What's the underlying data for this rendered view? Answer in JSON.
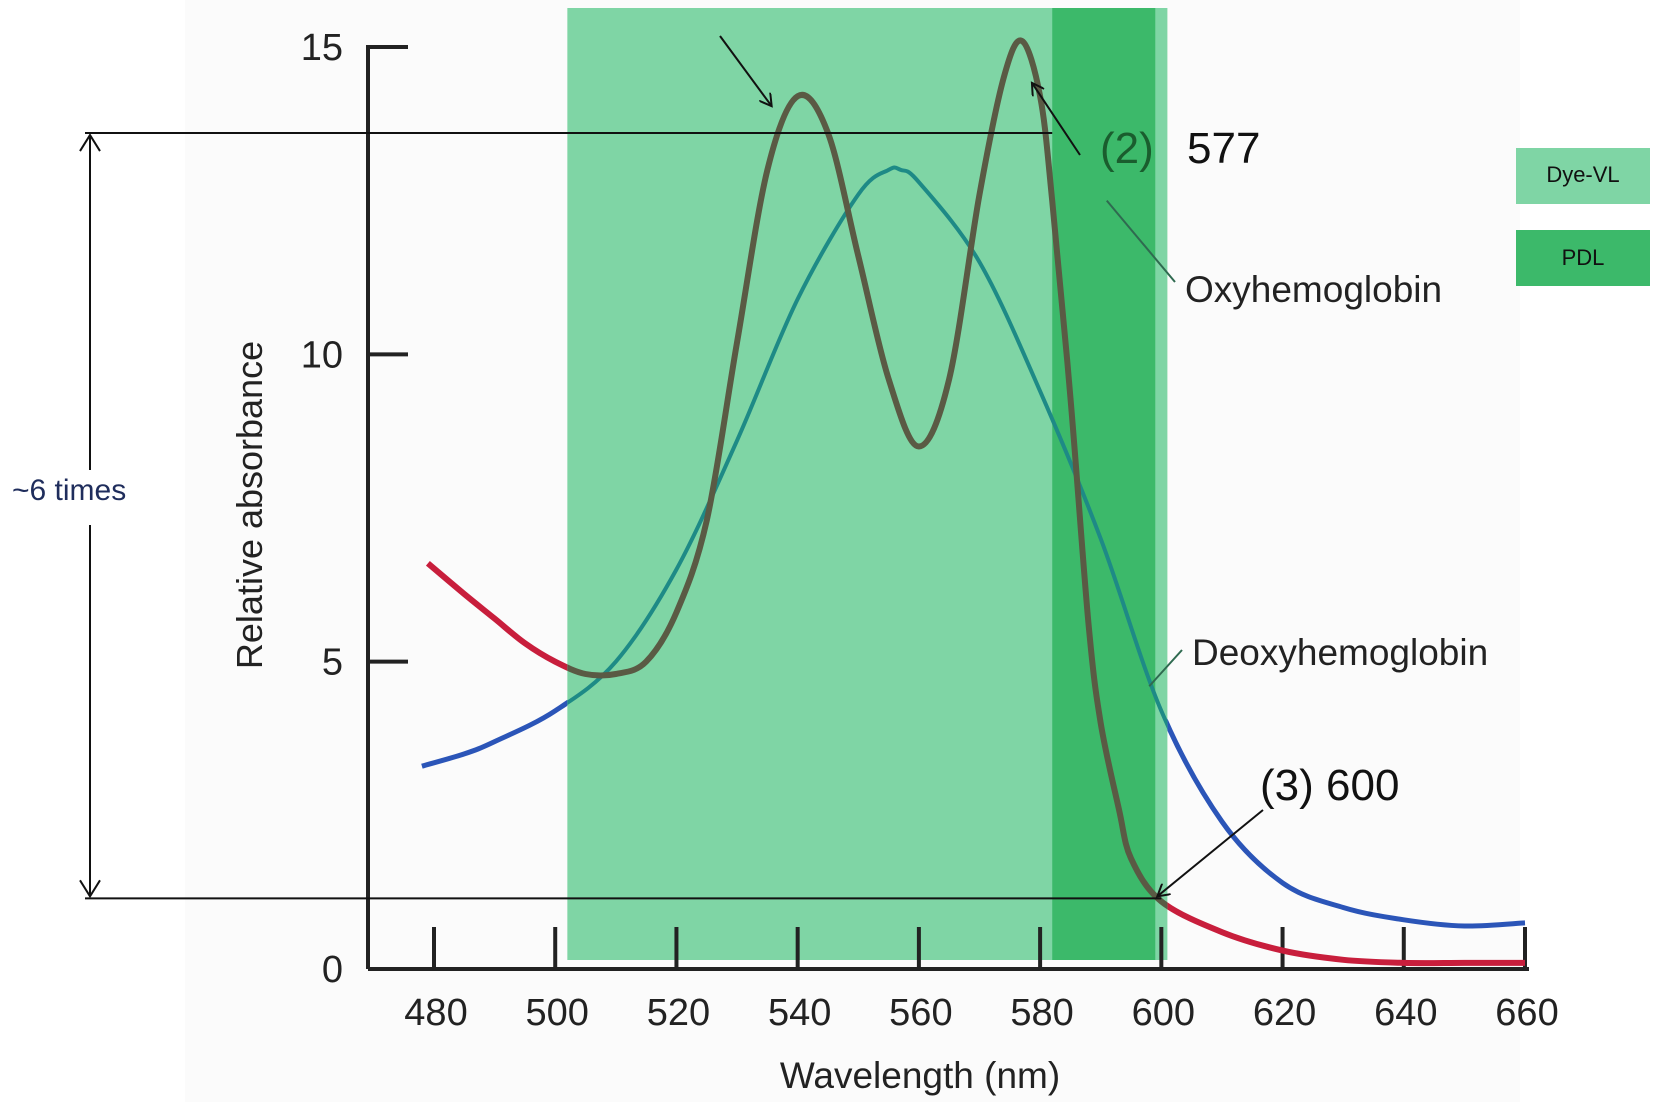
{
  "chart_data": {
    "type": "line",
    "title": "",
    "xlabel": "Wavelength (nm)",
    "ylabel": "Relative absorbance",
    "xlim": [
      470,
      665
    ],
    "ylim": [
      0,
      15.5
    ],
    "x_ticks": [
      480,
      500,
      520,
      540,
      560,
      580,
      600,
      620,
      640,
      660
    ],
    "y_ticks": [
      0,
      5,
      10,
      15
    ],
    "grid": false,
    "colors": {
      "oxy_outside": "#c81e3c",
      "oxy_inside": "#5a5a44",
      "deoxy_outside": "#2b55b8",
      "deoxy_inside": "#1e8a86",
      "dye_band": "#7fd5a5",
      "pdl_band": "#3cb96a"
    },
    "bands": [
      {
        "name": "Dye-VL",
        "x": [
          502,
          601
        ],
        "color": "#7fd5a5"
      },
      {
        "name": "PDL",
        "x": [
          582,
          599
        ],
        "color": "#3cb96a"
      }
    ],
    "series": [
      {
        "name": "Oxyhemoglobin",
        "x": [
          479,
          485,
          490,
          495,
          500,
          505,
          510,
          515,
          520,
          525,
          530,
          535,
          540,
          545,
          550,
          555,
          560,
          565,
          570,
          574,
          577,
          580,
          582,
          585,
          588,
          590,
          593,
          595,
          600,
          610,
          620,
          630,
          640,
          650,
          660
        ],
        "y": [
          6.6,
          6.1,
          5.7,
          5.3,
          5.0,
          4.8,
          4.8,
          5.0,
          5.8,
          7.3,
          10.2,
          13.0,
          14.2,
          13.6,
          11.6,
          9.6,
          8.5,
          9.6,
          12.6,
          14.5,
          15.1,
          14.2,
          12.5,
          9.3,
          5.6,
          4.0,
          2.6,
          1.8,
          1.1,
          0.6,
          0.3,
          0.15,
          0.1,
          0.1,
          0.1
        ]
      },
      {
        "name": "Deoxyhemoglobin",
        "x": [
          478,
          485,
          490,
          500,
          510,
          520,
          530,
          540,
          550,
          555,
          557,
          560,
          570,
          580,
          590,
          600,
          610,
          620,
          630,
          640,
          650,
          660
        ],
        "y": [
          3.3,
          3.5,
          3.7,
          4.2,
          5.0,
          6.5,
          8.6,
          10.9,
          12.6,
          13.0,
          13.0,
          12.8,
          11.5,
          9.4,
          7.0,
          4.2,
          2.4,
          1.4,
          1.0,
          0.8,
          0.7,
          0.75
        ]
      }
    ],
    "annotations": {
      "point_577": "(2)",
      "point_577_value": "577",
      "point_600": "(3) 600",
      "ratio": "~6 times"
    },
    "legend": {
      "position": "right",
      "items": [
        {
          "label": "Dye-VL",
          "color": "#7fd5a5"
        },
        {
          "label": "PDL",
          "color": "#3cb96a"
        }
      ]
    }
  }
}
